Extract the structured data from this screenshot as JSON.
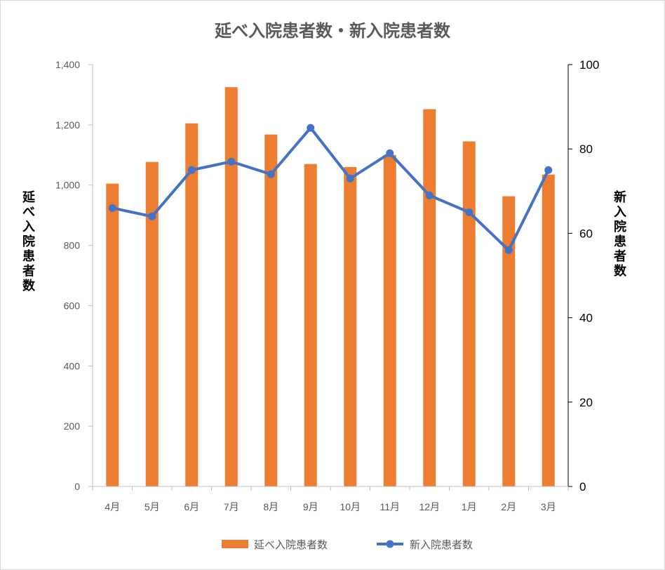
{
  "chart_data": {
    "type": "bar+line",
    "title": "延べ入院患者数・新入院患者数",
    "categories": [
      "4月",
      "5月",
      "6月",
      "7月",
      "8月",
      "9月",
      "10月",
      "11月",
      "12月",
      "1月",
      "2月",
      "3月"
    ],
    "series": [
      {
        "name": "延べ入院患者数",
        "type": "bar",
        "axis": "left",
        "color": "#ED7D31",
        "values": [
          1005,
          1077,
          1205,
          1325,
          1168,
          1070,
          1060,
          1100,
          1252,
          1145,
          963,
          1035
        ]
      },
      {
        "name": "新入院患者数",
        "type": "line",
        "axis": "right",
        "color": "#4472C4",
        "values": [
          66,
          64,
          75,
          77,
          74,
          85,
          73,
          79,
          69,
          65,
          56,
          75
        ]
      }
    ],
    "ylabel_left": "延べ入院患者数",
    "ylabel_right": "新入院患者数",
    "ylim_left": [
      0,
      1400
    ],
    "ylim_right": [
      0,
      100
    ],
    "yticks_left": [
      "0",
      "200",
      "400",
      "600",
      "800",
      "1,000",
      "1,200",
      "1,400"
    ],
    "yticks_right": [
      "0",
      "20",
      "40",
      "60",
      "80",
      "100"
    ],
    "legend": "bottom",
    "grid": false
  }
}
